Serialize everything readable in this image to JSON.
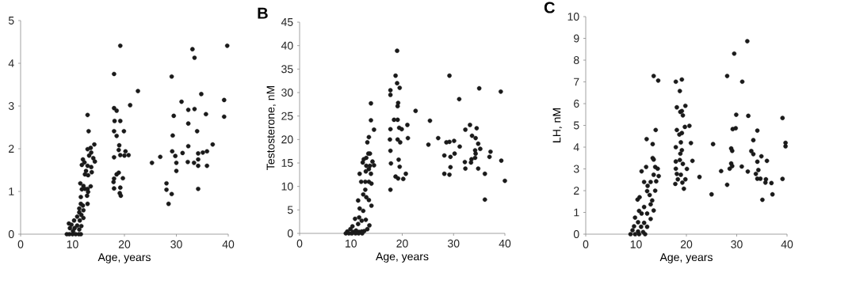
{
  "chart_data": [
    {
      "type": "scatter",
      "xlabel": "Age, years",
      "color": "#1a1a1a",
      "marker": "circle",
      "xlim": [
        0,
        40
      ],
      "ylim": [
        0,
        5
      ],
      "xticks": [
        0,
        10,
        20,
        30,
        40
      ],
      "yticks": [
        0,
        1,
        2,
        3,
        4,
        5
      ],
      "x": [
        19.2,
        39.8,
        33.1,
        33.5,
        18.0,
        29.1,
        22.6,
        34.8,
        21.1,
        31.0,
        39.2,
        39.2,
        35.7,
        12.9,
        32.3,
        33.5,
        29.5,
        18.0,
        18.5,
        13.1,
        32.3,
        34.0,
        29.3,
        18.1,
        19.2,
        18.0,
        19.9,
        18.5,
        19.0,
        37.0,
        32.3,
        29.2,
        31.2,
        25.3,
        26.9,
        29.8,
        30.0,
        30.0,
        32.2,
        33.4,
        34.2,
        35.1,
        35.9,
        34.2,
        34.2,
        35.9,
        34.2,
        18.0,
        20.0,
        20.8,
        20.2,
        18.9,
        19.2,
        18.9,
        18.5,
        19.7,
        17.9,
        18.0,
        18.0,
        19.2,
        19.1,
        19.3,
        28.1,
        28.1,
        29.1,
        28.5,
        14.2,
        13.5,
        12.9,
        13.6,
        13.2,
        14.0,
        14.3,
        12.0,
        12.3,
        11.8,
        12.9,
        13.6,
        12.6,
        13.7,
        12.4,
        13.0,
        11.5,
        12.1,
        13.5,
        12.4,
        12.9,
        11.8,
        13.0,
        12.8,
        11.6,
        12.9,
        11.6,
        12.0,
        11.3,
        12.1,
        11.3,
        11.7,
        12.1,
        10.9,
        11.4,
        10.3,
        9.3,
        9.8,
        10.9,
        11.7,
        9.5,
        10.4,
        11.3,
        8.9,
        9.4,
        10.0,
        10.6,
        11.2,
        11.6,
        10.1
      ],
      "values": [
        4.41,
        4.41,
        4.33,
        4.13,
        3.75,
        3.69,
        3.35,
        3.28,
        3.02,
        3.1,
        3.14,
        2.75,
        2.81,
        2.79,
        2.91,
        2.93,
        2.77,
        2.95,
        2.89,
        2.41,
        2.59,
        2.41,
        2.31,
        2.65,
        2.65,
        2.41,
        2.41,
        2.3,
        2.08,
        2.1,
        2.06,
        1.94,
        1.9,
        1.67,
        1.81,
        1.83,
        1.67,
        1.48,
        1.69,
        1.67,
        1.89,
        1.91,
        1.94,
        1.75,
        1.6,
        1.6,
        1.06,
        1.8,
        1.84,
        1.85,
        1.94,
        1.97,
        1.85,
        1.44,
        1.4,
        1.31,
        1.22,
        1.3,
        1.07,
        1.09,
        0.96,
        0.9,
        1.19,
        1.04,
        0.94,
        0.71,
        2.1,
        2.02,
        1.99,
        1.91,
        1.84,
        1.78,
        1.7,
        1.75,
        1.68,
        1.62,
        1.6,
        1.57,
        1.48,
        1.45,
        1.4,
        1.38,
        1.19,
        1.13,
        1.12,
        1.06,
        1.06,
        1.05,
        0.99,
        0.9,
        0.87,
        0.71,
        0.71,
        0.67,
        0.6,
        0.56,
        0.51,
        0.45,
        0.38,
        0.41,
        0.32,
        0.32,
        0.25,
        0.22,
        0.2,
        0.19,
        0.14,
        0.14,
        0.11,
        0,
        0,
        0,
        0,
        0,
        0,
        0.07
      ]
    },
    {
      "type": "scatter",
      "title": "B",
      "xlabel": "Age, years",
      "ylabel": "Testosterone, nM",
      "color": "#1a1a1a",
      "marker": "circle",
      "xlim": [
        0,
        40
      ],
      "ylim": [
        0,
        45
      ],
      "xticks": [
        0,
        10,
        20,
        30,
        40
      ],
      "yticks": [
        0,
        5,
        10,
        15,
        20,
        25,
        30,
        35,
        40,
        45
      ],
      "x": [
        19.0,
        18.7,
        29.2,
        35.0,
        39.2,
        19.0,
        19.5,
        17.7,
        17.7,
        31.1,
        19.2,
        19.1,
        13.9,
        22.6,
        25.4,
        13.9,
        18.4,
        19.1,
        21.0,
        33.2,
        34.5,
        32.3,
        14.5,
        17.7,
        19.4,
        19.9,
        17.6,
        19.1,
        19.6,
        21.1,
        27.0,
        25.1,
        28.6,
        29.2,
        30.1,
        31.2,
        33.6,
        34.3,
        34.8,
        35.2,
        34.2,
        34.3,
        37.2,
        37.0,
        30.2,
        28.2,
        29.4,
        33.5,
        34.2,
        32.2,
        33.4,
        39.3,
        29.4,
        32.3,
        34.8,
        28.2,
        29.2,
        36.1,
        40.0,
        36.1,
        17.8,
        19.3,
        19.5,
        18.7,
        19.2,
        20.2,
        20.7,
        17.7,
        17.7,
        13.5,
        13.2,
        14.5,
        14.2,
        13.4,
        13.7,
        13.0,
        12.5,
        12.3,
        13.0,
        13.7,
        13.5,
        12.9,
        13.9,
        11.7,
        12.0,
        12.8,
        13.5,
        14.0,
        12.8,
        12.4,
        13.0,
        13.5,
        14.0,
        11.7,
        12.4,
        11.4,
        10.8,
        11.6,
        12.1,
        12.9,
        13.6,
        13.2,
        12.6,
        11.4,
        10.3,
        9.9,
        9.3,
        10.4,
        11.0,
        11.6,
        12.1,
        9.0,
        9.6,
        10.2,
        10.9,
        11.5,
        12.2
      ],
      "values": [
        38.9,
        33.6,
        33.6,
        30.9,
        30.2,
        32.0,
        31.0,
        30.5,
        29.5,
        28.6,
        27.8,
        27.1,
        27.7,
        26.1,
        24.0,
        24.1,
        24.2,
        24.2,
        23.1,
        23.1,
        22.4,
        22.1,
        22.1,
        22.2,
        22.5,
        22.2,
        20.0,
        20.0,
        19.4,
        20.3,
        20.3,
        18.9,
        19.4,
        19.5,
        19.7,
        18.5,
        20.8,
        20.3,
        19.1,
        18.0,
        17.7,
        17.0,
        17.4,
        16.3,
        17.0,
        16.6,
        16.3,
        15.8,
        16.1,
        15.2,
        15.1,
        15.5,
        14.1,
        13.8,
        13.8,
        12.7,
        12.5,
        12.7,
        11.2,
        7.2,
        14.9,
        15.7,
        14.2,
        12.1,
        11.7,
        11.6,
        12.7,
        9.3,
        17.6,
        20.5,
        19.4,
        14.5,
        15.3,
        17.0,
        17.0,
        16.1,
        15.8,
        15.1,
        14.4,
        14.4,
        13.7,
        13.2,
        12.7,
        12.7,
        11.0,
        11.0,
        11.0,
        10.6,
        9.3,
        8.3,
        7.7,
        7.1,
        5.9,
        5.3,
        4.8,
        7.0,
        3.1,
        3.4,
        2.7,
        2.9,
        1.7,
        0.9,
        0.5,
        2.0,
        1.5,
        0.9,
        0.4,
        0.3,
        0.6,
        0.3,
        0.4,
        0,
        0,
        0,
        0,
        0,
        0
      ]
    },
    {
      "type": "scatter",
      "title": "C",
      "xlabel": "Age, years",
      "ylabel": "LH, nM",
      "color": "#1a1a1a",
      "marker": "circle",
      "xlim": [
        0,
        40
      ],
      "ylim": [
        0,
        10
      ],
      "xticks": [
        0,
        10,
        20,
        30,
        40
      ],
      "yticks": [
        0,
        1,
        2,
        3,
        4,
        5,
        6,
        7,
        8,
        9,
        10
      ],
      "x": [
        32.1,
        29.5,
        13.5,
        14.4,
        17.9,
        19.1,
        28.1,
        31.1,
        18.7,
        18.1,
        18.8,
        19.1,
        19.8,
        19.3,
        29.9,
        32.3,
        39.1,
        29.2,
        29.8,
        13.9,
        18.1,
        19.7,
        20.6,
        18.6,
        19.1,
        34.1,
        12.1,
        33.3,
        18.9,
        20.9,
        25.3,
        13.3,
        39.7,
        39.7,
        17.9,
        19.1,
        18.8,
        28.9,
        29.1,
        32.9,
        33.3,
        34.9,
        21.2,
        17.9,
        18.7,
        19.3,
        34.1,
        36.0,
        28.9,
        29.1,
        31.0,
        17.9,
        20.1,
        28.6,
        26.9,
        34.3,
        18.1,
        18.9,
        32.2,
        22.6,
        33.8,
        34.1,
        34.7,
        35.8,
        39.1,
        18.3,
        19.8,
        19.2,
        17.8,
        35.7,
        36.9,
        28.1,
        19.5,
        25.0,
        37.1,
        35.1,
        13.3,
        13.5,
        12.0,
        13.8,
        14.3,
        11.1,
        13.5,
        14.5,
        11.6,
        12.9,
        14.0,
        12.3,
        13.8,
        12.2,
        12.7,
        10.7,
        10.3,
        13.2,
        11.6,
        12.9,
        13.5,
        10.6,
        11.1,
        12.2,
        9.8,
        12.9,
        10.4,
        11.6,
        9.6,
        11.0,
        12.2,
        9.3,
        10.4,
        11.4,
        8.9,
        9.8,
        10.6,
        11.8
      ],
      "values": [
        8.87,
        8.3,
        7.27,
        7.06,
        7.01,
        7.11,
        7.27,
        7.01,
        6.58,
        5.83,
        5.62,
        5.66,
        5.9,
        5.46,
        5.49,
        5.44,
        5.34,
        4.83,
        4.87,
        4.79,
        4.79,
        4.93,
        4.98,
        4.58,
        4.65,
        4.76,
        4.37,
        4.32,
        4.22,
        4.19,
        4.14,
        4.14,
        4.2,
        4.04,
        4.0,
        3.86,
        3.7,
        3.94,
        3.83,
        3.82,
        3.68,
        3.58,
        3.37,
        3.34,
        3.41,
        3.23,
        3.33,
        3.37,
        3.25,
        3.13,
        3.11,
        3.01,
        3.0,
        3.01,
        2.9,
        2.95,
        2.77,
        2.73,
        2.88,
        2.63,
        2.77,
        2.55,
        2.55,
        2.52,
        2.54,
        2.52,
        2.52,
        2.37,
        2.31,
        2.37,
        2.35,
        2.27,
        2.09,
        1.83,
        1.83,
        1.58,
        3.5,
        3.43,
        3.09,
        3.09,
        3.01,
        2.89,
        2.73,
        2.67,
        2.4,
        2.4,
        2.43,
        2.22,
        2.0,
        1.98,
        1.8,
        1.7,
        1.59,
        1.55,
        1.25,
        1.37,
        1.09,
        1.07,
        0.95,
        0.95,
        0.76,
        0.7,
        0.55,
        0.52,
        0.36,
        0.34,
        0.34,
        0.18,
        0.12,
        0.1,
        0,
        0,
        0,
        0
      ]
    }
  ]
}
